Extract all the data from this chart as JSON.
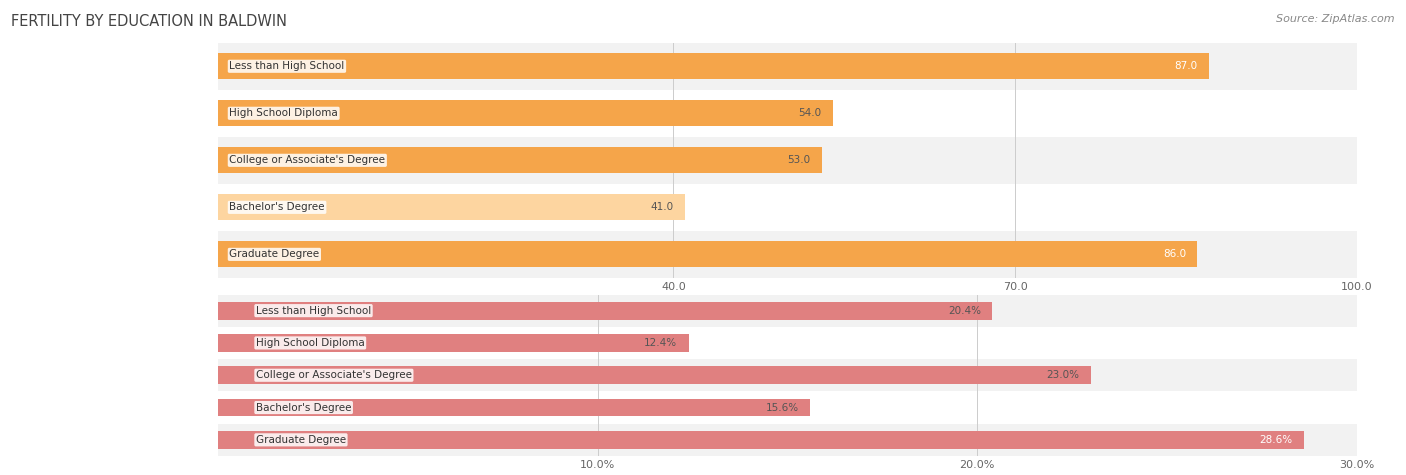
{
  "title": "FERTILITY BY EDUCATION IN BALDWIN",
  "source": "Source: ZipAtlas.com",
  "top_chart": {
    "categories": [
      "Less than High School",
      "High School Diploma",
      "College or Associate's Degree",
      "Bachelor's Degree",
      "Graduate Degree"
    ],
    "values": [
      87.0,
      54.0,
      53.0,
      41.0,
      86.0
    ],
    "bar_colors": [
      "#f5a54a",
      "#f5a54a",
      "#f5a54a",
      "#fdd5a0",
      "#f5a54a"
    ],
    "value_label_colors": [
      "#ffffff",
      "#555555",
      "#555555",
      "#555555",
      "#ffffff"
    ],
    "xlim": [
      0,
      100
    ],
    "xticks": [
      40.0,
      70.0,
      100.0
    ],
    "xtick_labels": [
      "40.0",
      "70.0",
      "100.0"
    ],
    "value_labels": [
      "87.0",
      "54.0",
      "53.0",
      "41.0",
      "86.0"
    ]
  },
  "bottom_chart": {
    "categories": [
      "Less than High School",
      "High School Diploma",
      "College or Associate's Degree",
      "Bachelor's Degree",
      "Graduate Degree"
    ],
    "values": [
      20.4,
      12.4,
      23.0,
      15.6,
      28.6
    ],
    "bar_colors": [
      "#e08080",
      "#e08080",
      "#e08080",
      "#e08080",
      "#e08080"
    ],
    "value_label_colors": [
      "#555555",
      "#555555",
      "#555555",
      "#555555",
      "#ffffff"
    ],
    "xlim": [
      0,
      30
    ],
    "xticks": [
      10.0,
      20.0,
      30.0
    ],
    "xtick_labels": [
      "10.0%",
      "20.0%",
      "30.0%"
    ],
    "value_labels": [
      "20.4%",
      "12.4%",
      "23.0%",
      "15.6%",
      "28.6%"
    ]
  },
  "bar_height": 0.55,
  "bg_color": "#ffffff",
  "row_bg_even": "#f2f2f2",
  "row_bg_odd": "#ffffff",
  "title_color": "#444444",
  "source_color": "#888888",
  "grid_color": "#cccccc",
  "cat_label_fontsize": 7.5,
  "val_label_fontsize": 7.5,
  "tick_fontsize": 8.0
}
